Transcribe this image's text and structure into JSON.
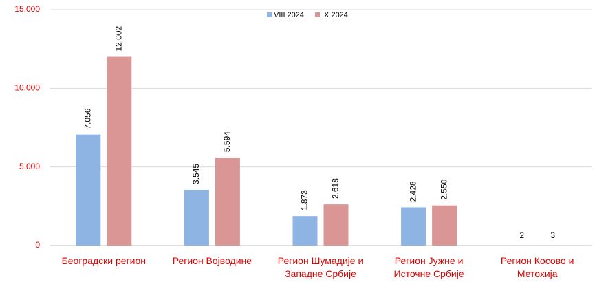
{
  "chart_data": {
    "type": "bar",
    "categories": [
      "Београдски регион",
      "Регион Војводине",
      "Регион Шумадије и Западне Србије",
      "Регион Јужне и Источне Србије",
      "Регион Косово и Метохија"
    ],
    "series": [
      {
        "name": "VIII 2024",
        "color": "#8db4e2",
        "values": [
          7056,
          3545,
          1873,
          2428,
          2
        ],
        "value_labels": [
          "7.056",
          "3.545",
          "1.873",
          "2.428",
          "2"
        ]
      },
      {
        "name": "IX 2024",
        "color": "#da9694",
        "values": [
          12002,
          5594,
          2618,
          2550,
          3
        ],
        "value_labels": [
          "12.002",
          "5.594",
          "2.618",
          "2.550",
          "3"
        ]
      }
    ],
    "ylim": [
      0,
      15000
    ],
    "yticks": [
      {
        "value": 0,
        "label": "0"
      },
      {
        "value": 5000,
        "label": "5.000"
      },
      {
        "value": 10000,
        "label": "10.000"
      },
      {
        "value": 15000,
        "label": "15.000"
      }
    ],
    "grid": true,
    "legend": "top"
  }
}
